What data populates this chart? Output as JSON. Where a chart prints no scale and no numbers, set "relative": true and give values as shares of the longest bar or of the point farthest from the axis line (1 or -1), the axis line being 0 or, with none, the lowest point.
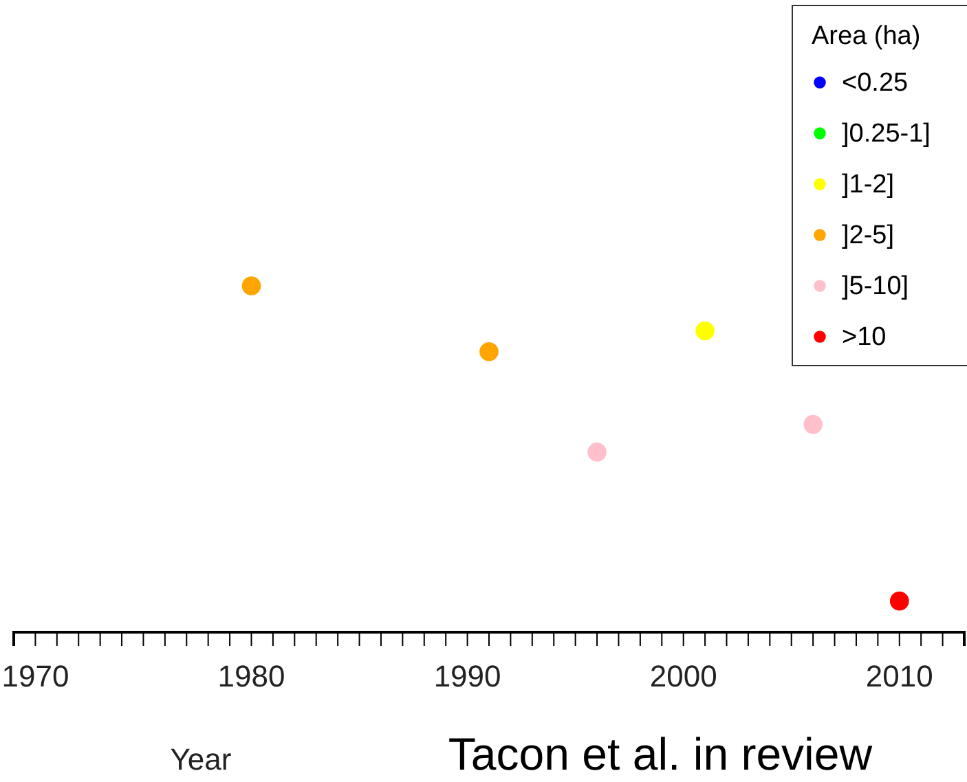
{
  "chart_data": {
    "type": "scatter",
    "relative": true,
    "xlabel": "Year",
    "legend_title": "Area (ha)",
    "legend": "top right",
    "marker": "circle",
    "grid": false,
    "xlim": [
      1969,
      2013
    ],
    "xticks": [
      1970,
      {
        "value": 1971,
        "label": null
      },
      {
        "value": 1972,
        "label": null
      },
      {
        "value": 1973,
        "label": null
      },
      {
        "value": 1974,
        "label": null
      },
      {
        "value": 1975,
        "label": null
      },
      {
        "value": 1976,
        "label": null
      },
      {
        "value": 1977,
        "label": null
      },
      {
        "value": 1978,
        "label": null
      },
      {
        "value": 1979,
        "label": null
      },
      1980,
      {
        "value": 1981,
        "label": null
      },
      {
        "value": 1982,
        "label": null
      },
      {
        "value": 1983,
        "label": null
      },
      {
        "value": 1984,
        "label": null
      },
      {
        "value": 1985,
        "label": null
      },
      {
        "value": 1986,
        "label": null
      },
      {
        "value": 1987,
        "label": null
      },
      {
        "value": 1988,
        "label": null
      },
      {
        "value": 1989,
        "label": null
      },
      1990,
      {
        "value": 1991,
        "label": null
      },
      {
        "value": 1992,
        "label": null
      },
      {
        "value": 1993,
        "label": null
      },
      {
        "value": 1994,
        "label": null
      },
      {
        "value": 1995,
        "label": null
      },
      {
        "value": 1996,
        "label": null
      },
      {
        "value": 1997,
        "label": null
      },
      {
        "value": 1998,
        "label": null
      },
      {
        "value": 1999,
        "label": null
      },
      2000,
      {
        "value": 2001,
        "label": null
      },
      {
        "value": 2002,
        "label": null
      },
      {
        "value": 2003,
        "label": null
      },
      {
        "value": 2004,
        "label": null
      },
      {
        "value": 2005,
        "label": null
      },
      {
        "value": 2006,
        "label": null
      },
      {
        "value": 2007,
        "label": null
      },
      {
        "value": 2008,
        "label": null
      },
      {
        "value": 2009,
        "label": null
      },
      2010,
      {
        "value": 2011,
        "label": null
      },
      {
        "value": 2012,
        "label": null
      },
      {
        "value": 2013,
        "label": null
      }
    ],
    "series": [
      {
        "name": "<0.25",
        "color": "#0000ff"
      },
      {
        "name": "]0.25-1]",
        "color": "#00ff00"
      },
      {
        "name": "]1-2]",
        "color": "#ffff00",
        "x": [
          2001
        ],
        "values": [
          0.87
        ]
      },
      {
        "name": "]2-5]",
        "color": "#ffa500",
        "x": [
          1980,
          1991
        ],
        "values": [
          1,
          0.81
        ]
      },
      {
        "name": "]5-10]",
        "color": "#ffc0cb",
        "x": [
          1996,
          2006
        ],
        "values": [
          0.52,
          0.6
        ]
      },
      {
        "name": ">10",
        "color": "#ff0000",
        "x": [
          2010
        ],
        "values": [
          0.09
        ]
      }
    ],
    "annotations": [
      "Tacon et al. in review"
    ]
  }
}
